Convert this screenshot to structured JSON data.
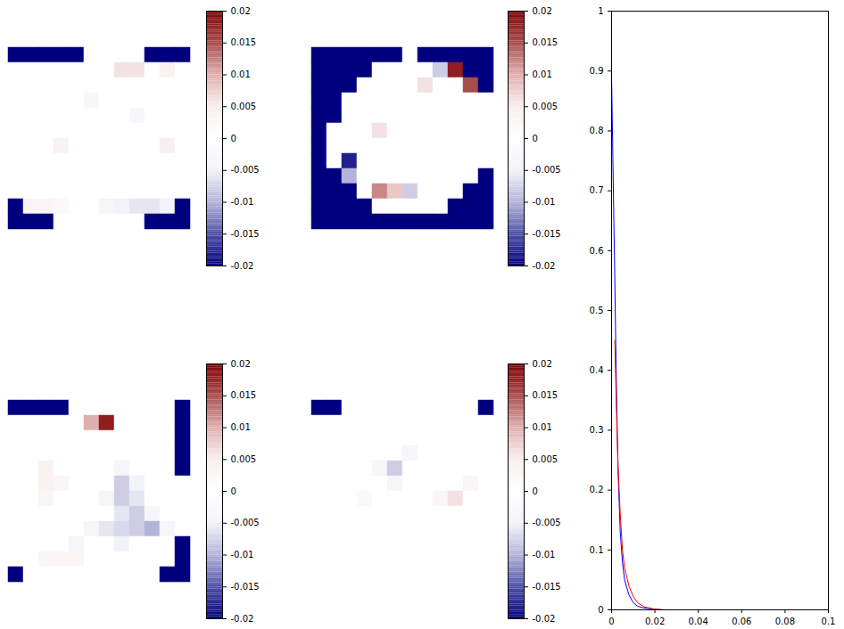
{
  "chart_data": [
    {
      "type": "heatmap",
      "tick_labels": false,
      "cells": [
        [
          -0.02,
          -0.02,
          -0.02,
          -0.02,
          -0.02,
          0,
          0,
          0,
          0,
          -0.02,
          -0.02,
          -0.02
        ],
        [
          0,
          0,
          0,
          0,
          0,
          0,
          0,
          0.006,
          0.006,
          0,
          0.004,
          0
        ],
        [
          0,
          0,
          0,
          0,
          0,
          0,
          0,
          0,
          0,
          0,
          0,
          0
        ],
        [
          0,
          0,
          0,
          0,
          0,
          -0.003,
          0,
          0,
          0,
          0,
          0,
          0
        ],
        [
          0,
          0,
          0,
          0,
          0,
          0,
          0,
          0,
          -0.003,
          0,
          0,
          0
        ],
        [
          0,
          0,
          0,
          0,
          0,
          0,
          0,
          0,
          0,
          0,
          0,
          0
        ],
        [
          0,
          0,
          0,
          0.004,
          0,
          0,
          0,
          0,
          0,
          0,
          0.005,
          0
        ],
        [
          0,
          0,
          0,
          0,
          0,
          0,
          0,
          0,
          0,
          0,
          0,
          0
        ],
        [
          0,
          0,
          0,
          0,
          0,
          0,
          0,
          0,
          0,
          0,
          0,
          0
        ],
        [
          0,
          0,
          0,
          0,
          0,
          0,
          0,
          0,
          0,
          0,
          0,
          0
        ],
        [
          -0.02,
          0.003,
          0.003,
          0.002,
          0,
          0,
          -0.004,
          -0.005,
          -0.006,
          -0.006,
          -0.005,
          -0.02
        ],
        [
          -0.02,
          -0.02,
          -0.02,
          0,
          0,
          0,
          0,
          0,
          0,
          -0.02,
          -0.02,
          -0.02
        ]
      ],
      "colorbar": {
        "range": [
          -0.02,
          0.02
        ],
        "ticks": [
          -0.02,
          -0.015,
          -0.01,
          -0.005,
          0,
          0.005,
          0.01,
          0.015,
          0.02
        ]
      }
    },
    {
      "type": "heatmap",
      "tick_labels": false,
      "cells": [
        [
          -0.02,
          -0.02,
          -0.02,
          -0.02,
          -0.02,
          -0.02,
          0,
          -0.02,
          -0.02,
          -0.02,
          -0.02,
          -0.02
        ],
        [
          -0.02,
          -0.02,
          -0.02,
          -0.02,
          0,
          0,
          0,
          0,
          -0.008,
          0.018,
          -0.02,
          -0.02
        ],
        [
          -0.02,
          -0.02,
          -0.02,
          0,
          0,
          0,
          0,
          0.006,
          0,
          0,
          0.015,
          -0.02
        ],
        [
          -0.02,
          -0.02,
          0,
          0,
          0,
          0,
          0,
          0,
          0,
          0,
          0,
          0
        ],
        [
          -0.02,
          -0.02,
          0,
          0,
          0,
          0,
          0,
          0,
          0,
          0,
          0,
          0
        ],
        [
          -0.02,
          0,
          0,
          0,
          0.006,
          0,
          0,
          0,
          0,
          0,
          0,
          0
        ],
        [
          -0.02,
          0,
          0,
          0,
          0,
          0,
          0,
          0,
          0,
          0,
          0,
          0
        ],
        [
          -0.02,
          0,
          -0.018,
          0,
          0,
          0,
          0,
          0,
          0,
          0,
          0,
          0
        ],
        [
          -0.02,
          -0.02,
          -0.01,
          0,
          0,
          0,
          0,
          0,
          0,
          0,
          0,
          -0.02
        ],
        [
          -0.02,
          -0.02,
          -0.02,
          0,
          0.012,
          0.008,
          -0.008,
          0,
          0,
          0,
          -0.02,
          -0.02
        ],
        [
          -0.02,
          -0.02,
          -0.02,
          -0.02,
          0,
          0,
          0,
          0,
          0,
          -0.02,
          -0.02,
          -0.02
        ],
        [
          -0.02,
          -0.02,
          -0.02,
          -0.02,
          -0.02,
          -0.02,
          -0.02,
          -0.02,
          -0.02,
          -0.02,
          -0.02,
          -0.02
        ]
      ],
      "colorbar": {
        "range": [
          -0.02,
          0.02
        ],
        "ticks": [
          -0.02,
          -0.015,
          -0.01,
          -0.005,
          0,
          0.005,
          0.01,
          0.015,
          0.02
        ]
      }
    },
    {
      "type": "heatmap",
      "tick_labels": false,
      "cells": [
        [
          -0.02,
          -0.02,
          -0.02,
          -0.02,
          0,
          0,
          0,
          0,
          0,
          0,
          0,
          -0.02
        ],
        [
          0,
          0,
          0,
          0,
          0,
          0.01,
          0.018,
          0,
          0,
          0,
          0,
          -0.02
        ],
        [
          0,
          0,
          0,
          0,
          0,
          0,
          0,
          0,
          0,
          0,
          0,
          -0.02
        ],
        [
          0,
          0,
          0,
          0,
          0,
          0,
          0,
          0,
          0,
          0,
          0,
          -0.02
        ],
        [
          0,
          0,
          0.004,
          0,
          0,
          0,
          0,
          -0.004,
          0,
          0,
          0,
          -0.02
        ],
        [
          0,
          0,
          0.004,
          0.003,
          0,
          0,
          0,
          -0.008,
          -0.005,
          0,
          0,
          0
        ],
        [
          0,
          0,
          0.003,
          0,
          0,
          0,
          -0.004,
          -0.008,
          -0.006,
          0,
          0,
          0
        ],
        [
          0,
          0,
          0,
          0,
          0,
          0,
          0,
          -0.006,
          -0.008,
          -0.004,
          0,
          0
        ],
        [
          0,
          0,
          0,
          0,
          0,
          -0.004,
          -0.006,
          -0.007,
          -0.008,
          -0.01,
          -0.004,
          0
        ],
        [
          0,
          0,
          0,
          0,
          -0.004,
          0,
          0,
          -0.005,
          0,
          0,
          0,
          -0.02
        ],
        [
          0,
          0,
          0.003,
          0.003,
          0.003,
          0,
          0,
          0,
          0,
          0,
          0,
          -0.02
        ],
        [
          -0.02,
          0,
          0,
          0,
          0,
          0,
          0,
          0,
          0,
          0,
          -0.02,
          -0.02
        ]
      ],
      "colorbar": {
        "range": [
          -0.02,
          0.02
        ],
        "ticks": [
          -0.02,
          -0.015,
          -0.01,
          -0.005,
          0,
          0.005,
          0.01,
          0.015,
          0.02
        ]
      }
    },
    {
      "type": "heatmap",
      "tick_labels": false,
      "cells": [
        [
          -0.02,
          -0.02,
          0,
          0,
          0,
          0,
          0,
          0,
          0,
          0,
          0,
          -0.02
        ],
        [
          0,
          0,
          0,
          0,
          0,
          0,
          0,
          0,
          0,
          0,
          0,
          0
        ],
        [
          0,
          0,
          0,
          0,
          0,
          0,
          0,
          0,
          0,
          0,
          0,
          0
        ],
        [
          0,
          0,
          0,
          0,
          0,
          0,
          -0.004,
          0,
          0,
          0,
          0,
          0
        ],
        [
          0,
          0,
          0,
          0,
          -0.004,
          -0.008,
          0,
          0,
          0,
          0,
          0,
          0
        ],
        [
          0,
          0,
          0,
          0,
          0,
          -0.004,
          0,
          0,
          0,
          0,
          0.003,
          0
        ],
        [
          0,
          0,
          0,
          0.002,
          0,
          0,
          0,
          0,
          0.003,
          0.006,
          0,
          0
        ],
        [
          0,
          0,
          0,
          0,
          0,
          0,
          0,
          0,
          0,
          0,
          0,
          0
        ],
        [
          0,
          0,
          0,
          0,
          0,
          0,
          0,
          0,
          0,
          0,
          0,
          0
        ],
        [
          0,
          0,
          0,
          0,
          0,
          0,
          0,
          0,
          0,
          0,
          0,
          0
        ],
        [
          0,
          0,
          0,
          0,
          0,
          0,
          0,
          0,
          0,
          0,
          0,
          0
        ],
        [
          0,
          0,
          0,
          0,
          0,
          0,
          0,
          0,
          0,
          0,
          0,
          0
        ]
      ],
      "colorbar": {
        "range": [
          -0.02,
          0.02
        ],
        "ticks": [
          -0.02,
          -0.015,
          -0.01,
          -0.005,
          0,
          0.005,
          0.01,
          0.015,
          0.02
        ]
      }
    },
    {
      "type": "line",
      "grid": false,
      "x": [
        0,
        0.0005,
        0.001,
        0.0015,
        0.002,
        0.0025,
        0.003,
        0.004,
        0.005,
        0.006,
        0.008,
        0.01,
        0.012,
        0.015,
        0.02,
        0.024
      ],
      "series": [
        {
          "color": "#0000ff",
          "values": [
            0.89,
            0.78,
            0.66,
            0.55,
            0.42,
            0.32,
            0.23,
            0.13,
            0.08,
            0.05,
            0.025,
            0.012,
            0.006,
            0.003,
            0.001,
            0
          ]
        },
        {
          "color": "#ff0000",
          "values": [
            null,
            null,
            null,
            0.45,
            0.37,
            0.3,
            0.24,
            0.16,
            0.1,
            0.07,
            0.04,
            0.022,
            0.012,
            0.005,
            0.001,
            0
          ]
        }
      ],
      "xlim": [
        0,
        0.1
      ],
      "xticks": [
        0,
        0.02,
        0.04,
        0.06,
        0.08,
        0.1
      ],
      "ylim": [
        0,
        1
      ],
      "yticks": [
        0,
        0.1,
        0.2,
        0.3,
        0.4,
        0.5,
        0.6,
        0.7,
        0.8,
        0.9,
        1
      ]
    }
  ]
}
